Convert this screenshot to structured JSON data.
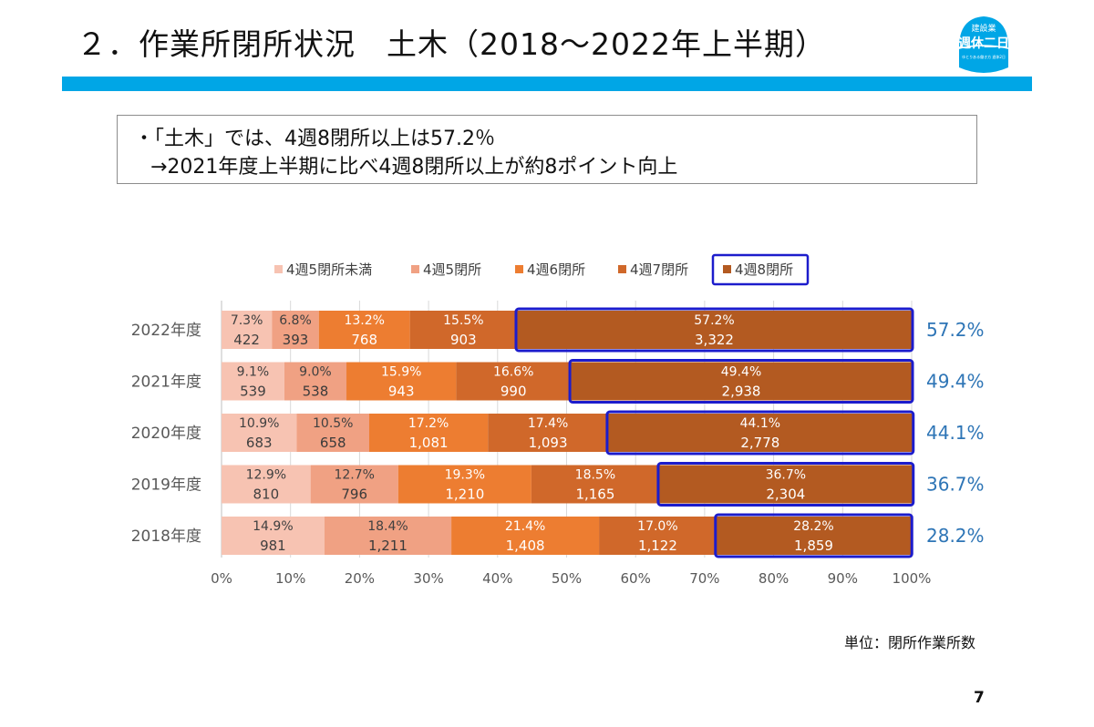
{
  "page": {
    "title": "２．作業所閉所状況　土木（2018～2022年上半期）",
    "unit_note": "単位：閉所作業所数",
    "page_number": "7"
  },
  "logo": {
    "top_text": "建設業",
    "main_text": "週休二日",
    "sub_text": "ゆとりある働き方 週休2日",
    "color": "#00a6e6"
  },
  "summary": {
    "line1": "・「土木」では、4週8閉所以上は57.2％",
    "line2": "→2021年度上半期に比べ4週8閉所以上が約8ポイント向上"
  },
  "colors": {
    "band": "#00a6e6",
    "highlight_box": "#1c1ccc",
    "right_labels": "#2e75b6"
  },
  "chart_data": {
    "type": "bar",
    "orientation": "horizontal",
    "stacked": "percent",
    "categories": [
      "2022年度",
      "2021年度",
      "2020年度",
      "2019年度",
      "2018年度"
    ],
    "series": [
      {
        "name": "4週5閉所未満",
        "color": "#f7c3b2",
        "percent": [
          "7.3%",
          "9.1%",
          "10.9%",
          "12.9%",
          "14.9%"
        ],
        "values": [
          7.3,
          9.1,
          10.9,
          12.9,
          14.9
        ],
        "counts": [
          "422",
          "539",
          "683",
          "810",
          "981"
        ]
      },
      {
        "name": "4週5閉所",
        "color": "#f0a183",
        "percent": [
          "6.8%",
          "9.0%",
          "10.5%",
          "12.7%",
          "18.4%"
        ],
        "values": [
          6.8,
          9.0,
          10.5,
          12.7,
          18.4
        ],
        "counts": [
          "393",
          "538",
          "658",
          "796",
          "1,211"
        ]
      },
      {
        "name": "4週6閉所",
        "color": "#ed7d31",
        "percent": [
          "13.2%",
          "15.9%",
          "17.2%",
          "19.3%",
          "21.4%"
        ],
        "values": [
          13.2,
          15.9,
          17.2,
          19.3,
          21.4
        ],
        "counts": [
          "768",
          "943",
          "1,081",
          "1,210",
          "1,408"
        ]
      },
      {
        "name": "4週7閉所",
        "color": "#d0682a",
        "percent": [
          "15.5%",
          "16.6%",
          "17.4%",
          "18.5%",
          "17.0%"
        ],
        "values": [
          15.5,
          16.6,
          17.4,
          18.5,
          17.0
        ],
        "counts": [
          "903",
          "990",
          "1,093",
          "1,165",
          "1,122"
        ]
      },
      {
        "name": "4週8閉所",
        "color": "#b35a21",
        "percent": [
          "57.2%",
          "49.4%",
          "44.1%",
          "36.7%",
          "28.2%"
        ],
        "values": [
          57.2,
          49.4,
          44.1,
          36.7,
          28.2
        ],
        "counts": [
          "3,322",
          "2,938",
          "2,778",
          "2,304",
          "1,859"
        ]
      }
    ],
    "right_labels": [
      "57.2%",
      "49.4%",
      "44.1%",
      "36.7%",
      "28.2%"
    ],
    "x_ticks": [
      "0%",
      "10%",
      "20%",
      "30%",
      "40%",
      "50%",
      "60%",
      "70%",
      "80%",
      "90%",
      "100%"
    ],
    "xlim": [
      0,
      100
    ],
    "grid": true,
    "legend": "top",
    "highlighted_series": "4週8閉所"
  }
}
